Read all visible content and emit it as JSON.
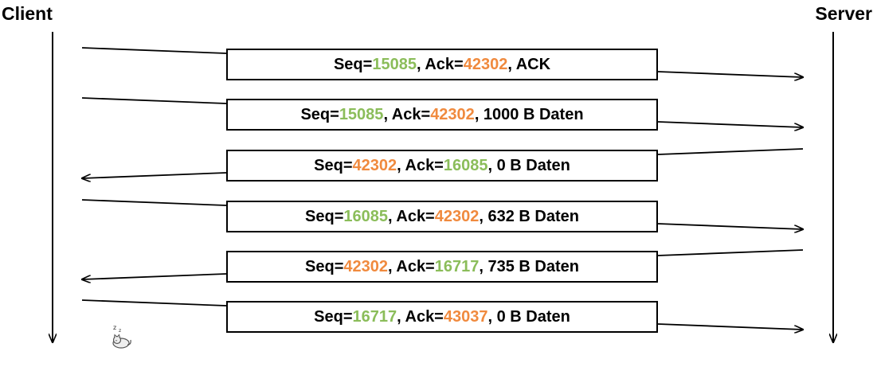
{
  "endpoints": {
    "client": "Client",
    "server": "Server"
  },
  "colors": {
    "client_number": "#8bbd5a",
    "server_number": "#f08a3e",
    "line": "#000000"
  },
  "messages": [
    {
      "direction": "client-to-server",
      "seq_label": "Seq=",
      "seq": "15085",
      "seq_color": "green",
      "ack_label": ", Ack=",
      "ack": "42302",
      "ack_color": "orange",
      "suffix": ", ACK"
    },
    {
      "direction": "client-to-server",
      "seq_label": "Seq=",
      "seq": "15085",
      "seq_color": "green",
      "ack_label": ", Ack=",
      "ack": "42302",
      "ack_color": "orange",
      "suffix": ", 1000 B Daten"
    },
    {
      "direction": "server-to-client",
      "seq_label": "Seq=",
      "seq": "42302",
      "seq_color": "orange",
      "ack_label": ", Ack=",
      "ack": "16085",
      "ack_color": "green",
      "suffix": ", 0 B Daten"
    },
    {
      "direction": "client-to-server",
      "seq_label": "Seq=",
      "seq": "16085",
      "seq_color": "green",
      "ack_label": ", Ack=",
      "ack": "42302",
      "ack_color": "orange",
      "suffix": ", 632 B Daten"
    },
    {
      "direction": "server-to-client",
      "seq_label": "Seq=",
      "seq": "42302",
      "seq_color": "orange",
      "ack_label": ", Ack=",
      "ack": "16717",
      "ack_color": "green",
      "suffix": ", 735 B Daten"
    },
    {
      "direction": "client-to-server",
      "seq_label": "Seq=",
      "seq": "16717",
      "seq_color": "green",
      "ack_label": ", Ack=",
      "ack": "43037",
      "ack_color": "orange",
      "suffix": ", 0 B Daten"
    }
  ],
  "icons": {
    "sleep": "sleeping-cat-icon"
  }
}
